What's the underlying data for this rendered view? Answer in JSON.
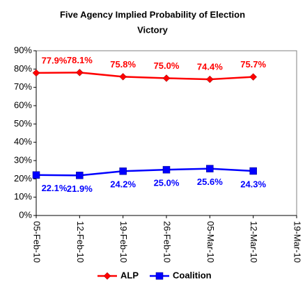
{
  "chart_data": {
    "type": "line",
    "title": "Five Agency Implied Probability of Election Victory",
    "categories": [
      "05-Feb-10",
      "12-Feb-10",
      "19-Feb-10",
      "26-Feb-10",
      "05-Mar-10",
      "12-Mar-10",
      "19-Mar-10"
    ],
    "series": [
      {
        "name": "ALP",
        "color": "#ff0000",
        "marker": "diamond",
        "values": [
          77.9,
          78.1,
          75.8,
          75.0,
          74.4,
          75.7,
          null
        ],
        "value_labels": [
          "77.9%",
          "78.1%",
          "75.8%",
          "75.0%",
          "74.4%",
          "75.7%",
          null
        ]
      },
      {
        "name": "Coalition",
        "color": "#0000ff",
        "marker": "square",
        "values": [
          22.1,
          21.9,
          24.2,
          25.0,
          25.6,
          24.3,
          null
        ],
        "value_labels": [
          "22.1%",
          "21.9%",
          "24.2%",
          "25.0%",
          "25.6%",
          "24.3%",
          null
        ]
      }
    ],
    "ylim": [
      0,
      90
    ],
    "yticks": [
      {
        "value": 0,
        "label": "0%"
      },
      {
        "value": 10,
        "label": "10%"
      },
      {
        "value": 20,
        "label": "20%"
      },
      {
        "value": 30,
        "label": "30%"
      },
      {
        "value": 40,
        "label": "40%"
      },
      {
        "value": 50,
        "label": "50%"
      },
      {
        "value": 60,
        "label": "60%"
      },
      {
        "value": 70,
        "label": "70%"
      },
      {
        "value": 80,
        "label": "80%"
      },
      {
        "value": 90,
        "label": "90%"
      }
    ],
    "grid": false,
    "legend": "bottom"
  }
}
